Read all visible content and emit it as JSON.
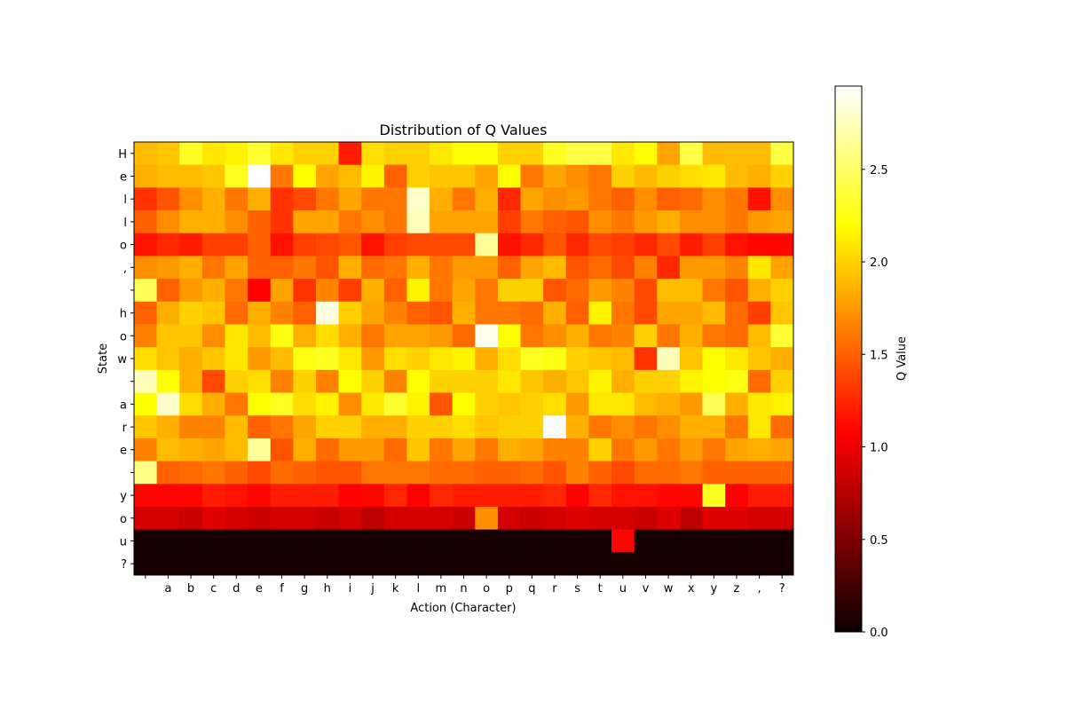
{
  "chart_data": {
    "type": "heatmap",
    "title": "Distribution of Q Values",
    "xlabel": "Action (Character)",
    "ylabel": "State",
    "x_labels": [
      " ",
      "a",
      "b",
      "c",
      "d",
      "e",
      "f",
      "g",
      "h",
      "i",
      "j",
      "k",
      "l",
      "m",
      "n",
      "o",
      "p",
      "q",
      "r",
      "s",
      "t",
      "u",
      "v",
      "w",
      "x",
      "y",
      "z",
      ",",
      "?"
    ],
    "y_labels": [
      "H",
      "e",
      "l",
      "l",
      "o",
      ",",
      " ",
      "h",
      "o",
      "w",
      " ",
      "a",
      "r",
      "e",
      " ",
      "y",
      "o",
      "u",
      "?"
    ],
    "colorbar": {
      "label": "Q Value",
      "range": [
        0,
        2.95
      ],
      "ticks": [
        "0.0",
        "0.5",
        "1.0",
        "1.5",
        "2.0",
        "2.5"
      ],
      "tick_values": [
        0,
        0.5,
        1.0,
        1.5,
        2.0,
        2.5
      ],
      "colormap": "hot"
    },
    "values": [
      [
        1.9,
        1.95,
        2.3,
        2.1,
        2.15,
        2.35,
        2.1,
        2.0,
        2.0,
        1.2,
        2.05,
        2.0,
        2.0,
        2.1,
        2.2,
        2.2,
        2.0,
        2.0,
        2.3,
        2.4,
        2.4,
        2.1,
        2.2,
        1.8,
        2.4,
        1.9,
        1.9,
        1.9,
        2.4
      ],
      [
        1.85,
        1.9,
        1.9,
        1.95,
        2.3,
        2.95,
        1.6,
        2.2,
        1.8,
        1.9,
        2.15,
        1.5,
        2.0,
        1.95,
        1.95,
        1.8,
        2.2,
        1.6,
        1.8,
        1.7,
        1.6,
        2.0,
        1.9,
        2.0,
        2.05,
        2.1,
        1.9,
        1.85,
        2.0
      ],
      [
        1.3,
        1.45,
        1.7,
        1.85,
        1.6,
        1.85,
        1.3,
        1.4,
        1.6,
        1.8,
        1.6,
        1.6,
        2.8,
        1.85,
        1.6,
        1.85,
        1.25,
        1.8,
        1.7,
        1.75,
        1.6,
        1.5,
        1.7,
        1.5,
        1.55,
        1.7,
        1.6,
        1.15,
        1.7
      ],
      [
        1.5,
        1.7,
        1.85,
        1.85,
        1.7,
        1.5,
        1.3,
        1.8,
        1.8,
        1.6,
        1.7,
        1.6,
        2.75,
        1.8,
        1.8,
        1.8,
        1.35,
        1.6,
        1.5,
        1.45,
        1.7,
        1.6,
        1.75,
        1.85,
        1.7,
        1.7,
        1.6,
        1.75,
        1.8
      ],
      [
        1.15,
        1.25,
        1.2,
        1.35,
        1.35,
        1.5,
        1.15,
        1.35,
        1.4,
        1.45,
        1.15,
        1.35,
        1.4,
        1.4,
        1.4,
        2.65,
        1.15,
        1.25,
        1.45,
        1.25,
        1.4,
        1.35,
        1.25,
        1.4,
        1.2,
        1.35,
        1.15,
        1.1,
        1.1
      ],
      [
        1.7,
        1.75,
        1.85,
        1.6,
        1.8,
        1.5,
        1.5,
        1.6,
        1.45,
        1.85,
        1.55,
        1.6,
        1.85,
        1.6,
        1.75,
        1.75,
        1.5,
        1.8,
        1.9,
        1.45,
        1.55,
        1.4,
        1.65,
        1.25,
        1.75,
        1.75,
        1.65,
        2.1,
        1.8
      ],
      [
        2.45,
        1.5,
        1.75,
        1.85,
        1.6,
        1.05,
        1.8,
        1.3,
        1.65,
        1.35,
        1.85,
        1.5,
        2.15,
        1.6,
        1.8,
        1.6,
        2.0,
        2.0,
        1.45,
        1.55,
        1.75,
        1.65,
        1.4,
        1.9,
        1.9,
        1.6,
        1.45,
        1.85,
        2.0
      ],
      [
        1.5,
        1.85,
        2.0,
        1.95,
        1.55,
        1.85,
        1.65,
        1.5,
        2.85,
        2.0,
        1.8,
        1.65,
        1.5,
        1.45,
        1.85,
        1.6,
        1.6,
        1.55,
        1.85,
        1.5,
        2.15,
        1.6,
        1.4,
        1.8,
        1.8,
        1.9,
        1.55,
        1.35,
        1.95
      ],
      [
        1.65,
        1.95,
        1.95,
        1.7,
        2.1,
        1.9,
        2.25,
        1.85,
        2.05,
        1.85,
        1.6,
        1.8,
        1.8,
        1.75,
        1.55,
        2.9,
        2.2,
        1.6,
        1.7,
        1.85,
        1.6,
        1.65,
        2.0,
        1.6,
        1.85,
        1.6,
        1.55,
        1.9,
        2.35
      ],
      [
        2.05,
        1.95,
        1.85,
        1.95,
        2.1,
        1.75,
        1.9,
        2.25,
        2.3,
        2.1,
        1.75,
        2.05,
        2.0,
        2.1,
        2.15,
        1.85,
        2.05,
        2.3,
        2.25,
        2.0,
        1.95,
        1.9,
        1.3,
        2.75,
        1.95,
        2.2,
        2.1,
        1.95,
        1.85
      ],
      [
        2.75,
        2.2,
        1.85,
        1.4,
        2.0,
        2.05,
        1.65,
        2.0,
        1.65,
        2.2,
        2.0,
        1.65,
        2.2,
        2.0,
        2.0,
        2.0,
        2.1,
        1.95,
        1.85,
        1.95,
        2.15,
        1.85,
        2.0,
        2.0,
        2.15,
        2.2,
        2.25,
        1.55,
        2.0
      ],
      [
        2.2,
        2.8,
        2.05,
        1.85,
        1.6,
        2.2,
        2.3,
        2.05,
        2.15,
        1.7,
        2.1,
        2.35,
        2.15,
        1.45,
        2.2,
        2.0,
        1.95,
        2.0,
        2.05,
        1.75,
        2.1,
        2.1,
        1.9,
        1.85,
        1.75,
        2.45,
        1.85,
        2.1,
        2.15
      ],
      [
        1.95,
        1.85,
        1.65,
        1.65,
        1.9,
        1.5,
        1.6,
        1.8,
        2.0,
        2.0,
        1.85,
        1.85,
        2.0,
        2.0,
        2.05,
        1.95,
        2.0,
        2.0,
        2.95,
        1.85,
        1.6,
        1.7,
        1.6,
        1.7,
        1.85,
        1.85,
        1.6,
        2.1,
        1.55
      ],
      [
        1.65,
        1.9,
        1.85,
        1.8,
        1.9,
        2.65,
        1.45,
        1.85,
        1.55,
        1.75,
        1.75,
        1.55,
        1.95,
        1.6,
        1.8,
        1.6,
        1.85,
        1.8,
        1.65,
        1.65,
        2.0,
        1.6,
        1.75,
        1.6,
        1.75,
        1.6,
        1.8,
        1.85,
        1.8
      ],
      [
        2.6,
        1.5,
        1.55,
        1.6,
        1.5,
        1.4,
        1.55,
        1.5,
        1.45,
        1.45,
        1.6,
        1.6,
        1.6,
        1.55,
        1.55,
        1.5,
        1.5,
        1.55,
        1.45,
        1.65,
        1.5,
        1.4,
        1.55,
        1.55,
        1.6,
        1.5,
        1.5,
        1.5,
        1.5
      ],
      [
        1.1,
        1.1,
        1.1,
        1.2,
        1.15,
        1.1,
        1.2,
        1.2,
        1.2,
        1.05,
        1.1,
        1.25,
        1.05,
        1.25,
        1.2,
        1.2,
        1.2,
        1.2,
        1.25,
        1.05,
        1.25,
        1.15,
        1.15,
        1.1,
        1.1,
        2.3,
        1.05,
        1.2,
        1.2
      ],
      [
        0.85,
        0.85,
        0.8,
        0.9,
        0.85,
        0.8,
        0.85,
        0.85,
        0.8,
        0.85,
        0.75,
        0.85,
        0.85,
        0.85,
        0.8,
        1.7,
        0.85,
        0.8,
        0.85,
        0.9,
        0.85,
        0.85,
        0.8,
        0.9,
        0.75,
        0.9,
        0.9,
        0.85,
        0.85
      ],
      [
        0.05,
        0.05,
        0.05,
        0.05,
        0.05,
        0.05,
        0.05,
        0.05,
        0.05,
        0.05,
        0.05,
        0.05,
        0.05,
        0.05,
        0.05,
        0.05,
        0.05,
        0.05,
        0.05,
        0.05,
        0.05,
        1.1,
        0.05,
        0.05,
        0.05,
        0.05,
        0.05,
        0.05,
        0.05
      ],
      [
        0.05,
        0.05,
        0.05,
        0.05,
        0.05,
        0.05,
        0.05,
        0.05,
        0.05,
        0.05,
        0.05,
        0.05,
        0.05,
        0.05,
        0.05,
        0.05,
        0.05,
        0.05,
        0.05,
        0.05,
        0.05,
        0.05,
        0.05,
        0.05,
        0.05,
        0.05,
        0.05,
        0.05,
        0.05
      ]
    ]
  }
}
